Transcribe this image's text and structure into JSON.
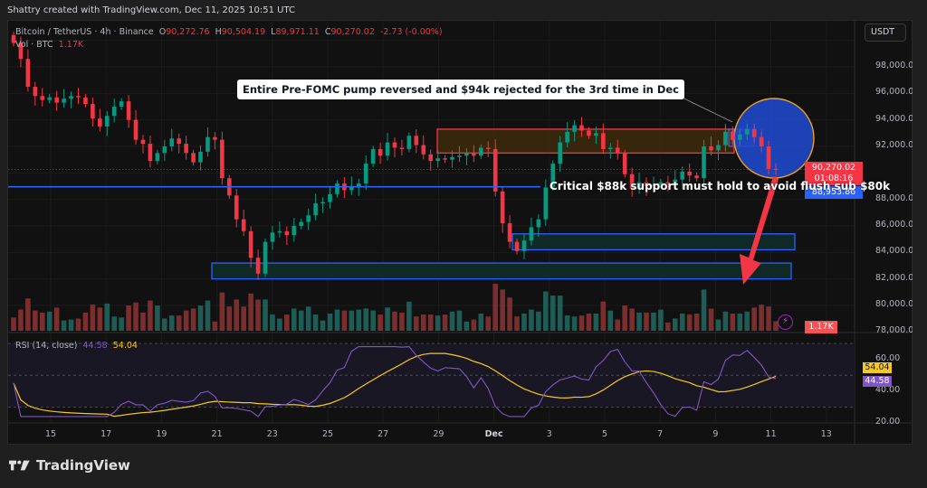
{
  "credit": "Shattry created with TradingView.com, Dec 11, 2025 10:51 UTC",
  "symbol": {
    "name": "Bitcoin / TetherUS",
    "interval": "4h",
    "exchange": "Binance",
    "open_label": "O",
    "open": "90,272.76",
    "high_label": "H",
    "high": "90,504.19",
    "low_label": "L",
    "low": "89,971.11",
    "close_label": "C",
    "close": "90,270.02",
    "change": "-2.73 (-0.00%)"
  },
  "volume": {
    "label": "Vol · BTC",
    "value": "1.17K",
    "tag": "1.17K"
  },
  "currency_button": "USDT",
  "price_axis": {
    "labels": [
      "98,000.00",
      "96,000.00",
      "94,000.00",
      "92,000.00",
      "88,000.00",
      "86,000.00",
      "84,000.00",
      "82,000.00",
      "80,000.00",
      "78,000.00"
    ],
    "last_price": "90,270.02",
    "countdown": "01:08:16",
    "support_price": "88,953.86"
  },
  "annotations": {
    "top_callout": "Entire Pre-FOMC pump reversed and $94k rejected for the 3rd time in Dec",
    "support_text": "Critical $88k support must hold to avoid flush sub $80k"
  },
  "rsi": {
    "label": "RSI (14, close)",
    "value": "44.58",
    "ma_value": "54.04",
    "axis_labels": [
      "60.00",
      "40.00",
      "20.00"
    ]
  },
  "time_axis": [
    "15",
    "17",
    "19",
    "21",
    "23",
    "25",
    "27",
    "29",
    "Dec",
    "3",
    "5",
    "7",
    "9",
    "11",
    "13"
  ],
  "footer": {
    "brand": "TradingView"
  },
  "colors": {
    "up": "#089981",
    "down": "#f23645",
    "support_line": "#2962ff",
    "resistance_box_fill": "#3d2a0a",
    "resistance_box_border": "#f23645",
    "rsi_line": "#7e57c2",
    "rsi_ma": "#f7c81e",
    "circle_fill": "#1e4bd2",
    "circle_border": "#f0a020"
  },
  "chart_data": {
    "type": "candlestick",
    "title": "Bitcoin / TetherUS · 4h · Binance",
    "xlabel": "",
    "ylabel": "USDT",
    "ylim": [
      78000,
      100500
    ],
    "x_ticks": [
      "Nov 15",
      "Nov 17",
      "Nov 19",
      "Nov 21",
      "Nov 23",
      "Nov 25",
      "Nov 27",
      "Nov 29",
      "Dec 1",
      "Dec 3",
      "Dec 5",
      "Dec 7",
      "Dec 9",
      "Dec 11",
      "Dec 13"
    ],
    "close_series_approx": [
      99800,
      98600,
      96500,
      95800,
      95500,
      95700,
      95300,
      95600,
      95800,
      95700,
      95200,
      94100,
      93500,
      94300,
      95000,
      95400,
      94000,
      92500,
      92200,
      90900,
      91500,
      92000,
      92600,
      92200,
      91500,
      90800,
      91600,
      92700,
      92500,
      89600,
      88300,
      86500,
      85600,
      83600,
      82400,
      84800,
      85500,
      85600,
      85300,
      86000,
      86300,
      86800,
      87700,
      87800,
      88400,
      89200,
      88700,
      89000,
      89200,
      90700,
      91800,
      91300,
      92300,
      91900,
      91800,
      92800,
      92100,
      91400,
      90900,
      91100,
      91000,
      91200,
      91300,
      91500,
      91300,
      91900,
      91800,
      88600,
      86200,
      84800,
      84100,
      84900,
      85900,
      86500,
      88900,
      90700,
      92300,
      93100,
      93600,
      93200,
      92800,
      93000,
      91800,
      91900,
      91500,
      89900,
      88800,
      89300,
      89000,
      89100,
      89300,
      89200,
      89500,
      90100,
      89800,
      89600,
      92000,
      91700,
      92100,
      93100,
      92500,
      92900,
      93300,
      92700,
      92000,
      90300,
      90270
    ],
    "annotations": [
      {
        "type": "box",
        "label": "resistance zone",
        "y_range": [
          91500,
          93300
        ],
        "x_range": [
          "Nov 29",
          "Dec 9"
        ]
      },
      {
        "type": "hline",
        "label": "support",
        "y": 88953.86
      },
      {
        "type": "box",
        "label": "demand zone 1",
        "y_range": [
          84200,
          85400
        ],
        "x_range": [
          "Dec 1",
          "Dec 11"
        ]
      },
      {
        "type": "box",
        "label": "demand zone 2",
        "y_range": [
          82000,
          83200
        ],
        "x_range": [
          "Nov 21",
          "Dec 11"
        ]
      },
      {
        "type": "arrow",
        "label": "downside target",
        "from": 90000,
        "to": 82000
      }
    ],
    "volume_last": "1.17K",
    "rsi": {
      "period": 14,
      "last": 44.58,
      "ma_last": 54.04,
      "bands": [
        30,
        70
      ],
      "ylim": [
        20,
        70
      ]
    }
  }
}
